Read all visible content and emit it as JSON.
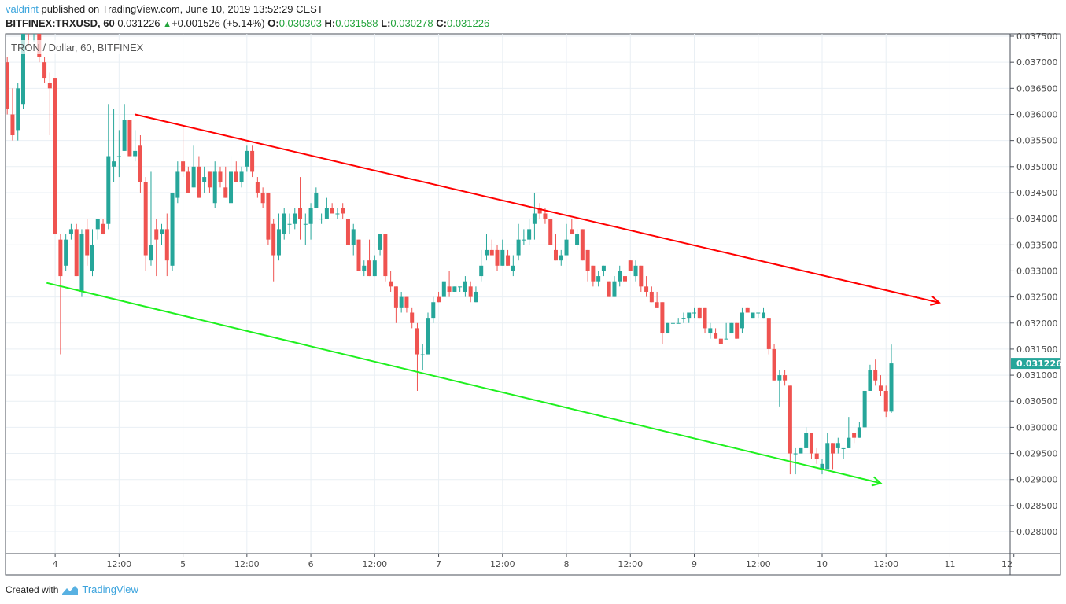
{
  "header": {
    "username": "valdrint",
    "published_text": "published on TradingView.com, June 10, 2019 13:52:29 CEST",
    "symbol": "BITFINEX:TRXUSD, 60",
    "last_price": "0.031226",
    "change": "+0.001526 (+5.14%)",
    "open_label": "O:",
    "open": "0.030303",
    "high_label": "H:",
    "high": "0.031588",
    "low_label": "L:",
    "low": "0.030278",
    "close_label": "C:",
    "close": "0.031226",
    "up_arrow_icon": "triangle-up-icon"
  },
  "footer": {
    "created_with": "Created with",
    "brand": "TradingView",
    "logo_icon": "tradingview-logo-icon"
  },
  "colors": {
    "up": "#26a69a",
    "down": "#ef5350",
    "upper_trendline": "#ff0000",
    "lower_trendline": "#1ef01e",
    "grid": "#e9eff4",
    "price_tag": "#26a69a"
  },
  "chart_data": {
    "type": "candlestick",
    "title": "TRON / Dollar, 60, BITFINEX",
    "interval_minutes": 60,
    "grid": true,
    "ylim": [
      0.0275,
      0.0376
    ],
    "y_ticks": [
      "0.028000",
      "0.028500",
      "0.029000",
      "0.029500",
      "0.030000",
      "0.030500",
      "0.031000",
      "0.031500",
      "0.032000",
      "0.032500",
      "0.033000",
      "0.033500",
      "0.034000",
      "0.034500",
      "0.035000",
      "0.035500",
      "0.036000",
      "0.036500",
      "0.037000",
      "0.037500"
    ],
    "x_ticks": {
      "first_bar": 9,
      "bars_per_tick": 12,
      "labels": [
        "4",
        "12:00",
        "5",
        "12:00",
        "6",
        "12:00",
        "7",
        "12:00",
        "8",
        "12:00",
        "9",
        "12:00",
        "10",
        "12:00",
        "11",
        "12"
      ]
    },
    "current_price": {
      "value": 0.031226,
      "label": "0.031226"
    },
    "trendlines": [
      {
        "name": "upper",
        "color": "#ff0000",
        "start": {
          "bar": 24,
          "price": 0.036
        },
        "end": {
          "bar": 175,
          "price": 0.03239
        }
      },
      {
        "name": "lower",
        "color": "#1ef01e",
        "start": {
          "bar": 7.4,
          "price": 0.03277
        },
        "end": {
          "bar": 164,
          "price": 0.02893
        }
      }
    ],
    "candles_ohlc": [
      [
        0.037,
        0.0371,
        0.036,
        0.0361
      ],
      [
        0.036,
        0.0365,
        0.0355,
        0.0356
      ],
      [
        0.0357,
        0.0366,
        0.0355,
        0.0365
      ],
      [
        0.0362,
        0.0378,
        0.0361,
        0.0378
      ],
      [
        0.0378,
        0.038,
        0.0373,
        0.0376
      ],
      [
        0.0376,
        0.0378,
        0.0374,
        0.0377
      ],
      [
        0.0377,
        0.0378,
        0.037,
        0.0371
      ],
      [
        0.037,
        0.0371,
        0.0366,
        0.0367
      ],
      [
        0.0366,
        0.0368,
        0.0356,
        0.0365
      ],
      [
        0.0367,
        0.0367,
        0.0337,
        0.0337
      ],
      [
        0.0336,
        0.0337,
        0.0314,
        0.0329
      ],
      [
        0.0331,
        0.0337,
        0.033,
        0.0336
      ],
      [
        0.0337,
        0.0339,
        0.0336,
        0.0338
      ],
      [
        0.0338,
        0.0339,
        0.0329,
        0.0329
      ],
      [
        0.0326,
        0.0338,
        0.0325,
        0.0337
      ],
      [
        0.0338,
        0.034,
        0.0331,
        0.0333
      ],
      [
        0.033,
        0.0338,
        0.0329,
        0.0335
      ],
      [
        0.0338,
        0.034,
        0.0336,
        0.034
      ],
      [
        0.0339,
        0.034,
        0.0337,
        0.0337
      ],
      [
        0.0339,
        0.0362,
        0.0338,
        0.0352
      ],
      [
        0.035,
        0.0361,
        0.0347,
        0.0351
      ],
      [
        0.0352,
        0.0357,
        0.0348,
        0.0352
      ],
      [
        0.0353,
        0.0362,
        0.0353,
        0.0359
      ],
      [
        0.0359,
        0.0359,
        0.0352,
        0.0352
      ],
      [
        0.0352,
        0.0357,
        0.0351,
        0.0353
      ],
      [
        0.0354,
        0.0356,
        0.0345,
        0.0347
      ],
      [
        0.0347,
        0.0348,
        0.033,
        0.0333
      ],
      [
        0.0332,
        0.0349,
        0.0331,
        0.0335
      ],
      [
        0.0338,
        0.034,
        0.0329,
        0.0336
      ],
      [
        0.0337,
        0.0339,
        0.0335,
        0.0338
      ],
      [
        0.0338,
        0.0341,
        0.0329,
        0.0332
      ],
      [
        0.0331,
        0.0345,
        0.033,
        0.0345
      ],
      [
        0.0344,
        0.0351,
        0.0343,
        0.0349
      ],
      [
        0.0351,
        0.0358,
        0.0348,
        0.0349
      ],
      [
        0.0349,
        0.035,
        0.0345,
        0.0345
      ],
      [
        0.0346,
        0.0354,
        0.0346,
        0.035
      ],
      [
        0.035,
        0.0352,
        0.0344,
        0.0344
      ],
      [
        0.0347,
        0.035,
        0.0345,
        0.0348
      ],
      [
        0.0349,
        0.0349,
        0.0345,
        0.0346
      ],
      [
        0.0343,
        0.0351,
        0.0342,
        0.0349
      ],
      [
        0.0349,
        0.035,
        0.0346,
        0.0347
      ],
      [
        0.0346,
        0.035,
        0.0344,
        0.0344
      ],
      [
        0.0343,
        0.0352,
        0.0343,
        0.0349
      ],
      [
        0.0349,
        0.0351,
        0.0347,
        0.0347
      ],
      [
        0.0347,
        0.035,
        0.0346,
        0.0349
      ],
      [
        0.035,
        0.0354,
        0.0349,
        0.0353
      ],
      [
        0.0353,
        0.0354,
        0.0348,
        0.0349
      ],
      [
        0.0347,
        0.0348,
        0.0344,
        0.0345
      ],
      [
        0.0345,
        0.0346,
        0.0342,
        0.0343
      ],
      [
        0.0345,
        0.0345,
        0.0335,
        0.0336
      ],
      [
        0.0339,
        0.034,
        0.0328,
        0.0333
      ],
      [
        0.0333,
        0.0341,
        0.0332,
        0.0338
      ],
      [
        0.0337,
        0.0342,
        0.0336,
        0.0341
      ],
      [
        0.0339,
        0.0341,
        0.0337,
        0.0339
      ],
      [
        0.0339,
        0.0342,
        0.0338,
        0.0341
      ],
      [
        0.0342,
        0.0348,
        0.0336,
        0.034
      ],
      [
        0.0339,
        0.0341,
        0.0335,
        0.0339
      ],
      [
        0.0339,
        0.0343,
        0.0336,
        0.0342
      ],
      [
        0.0342,
        0.0346,
        0.0342,
        0.0345
      ],
      [
        0.034,
        0.0341,
        0.0339,
        0.034
      ],
      [
        0.034,
        0.0344,
        0.034,
        0.0342
      ],
      [
        0.0342,
        0.0343,
        0.0341,
        0.0341
      ],
      [
        0.0341,
        0.0342,
        0.034,
        0.0341
      ],
      [
        0.0342,
        0.0343,
        0.034,
        0.0341
      ],
      [
        0.034,
        0.034,
        0.0335,
        0.0335
      ],
      [
        0.0335,
        0.0339,
        0.0333,
        0.0338
      ],
      [
        0.0336,
        0.0336,
        0.033,
        0.033
      ],
      [
        0.033,
        0.0332,
        0.0329,
        0.0331
      ],
      [
        0.0332,
        0.0336,
        0.0329,
        0.0329
      ],
      [
        0.0329,
        0.0333,
        0.0329,
        0.0332
      ],
      [
        0.0334,
        0.0337,
        0.0333,
        0.0337
      ],
      [
        0.0337,
        0.0337,
        0.0328,
        0.0329
      ],
      [
        0.0328,
        0.033,
        0.0326,
        0.0327
      ],
      [
        0.0327,
        0.0327,
        0.032,
        0.0323
      ],
      [
        0.0323,
        0.0326,
        0.0322,
        0.0325
      ],
      [
        0.0325,
        0.0325,
        0.0322,
        0.0323
      ],
      [
        0.0322,
        0.0323,
        0.0319,
        0.032
      ],
      [
        0.0319,
        0.032,
        0.0307,
        0.0314
      ],
      [
        0.0314,
        0.0316,
        0.0311,
        0.0314
      ],
      [
        0.0314,
        0.0322,
        0.0314,
        0.0321
      ],
      [
        0.0321,
        0.0325,
        0.032,
        0.0324
      ],
      [
        0.0325,
        0.0326,
        0.0324,
        0.0324
      ],
      [
        0.0325,
        0.0328,
        0.0325,
        0.0328
      ],
      [
        0.0327,
        0.033,
        0.0325,
        0.0326
      ],
      [
        0.0326,
        0.0327,
        0.0326,
        0.0327
      ],
      [
        0.0327,
        0.0327,
        0.0326,
        0.0327
      ],
      [
        0.0326,
        0.0329,
        0.0325,
        0.0328
      ],
      [
        0.0327,
        0.0328,
        0.0324,
        0.0325
      ],
      [
        0.0324,
        0.0327,
        0.0324,
        0.0326
      ],
      [
        0.0329,
        0.0334,
        0.0328,
        0.0331
      ],
      [
        0.0333,
        0.0337,
        0.0332,
        0.0334
      ],
      [
        0.0334,
        0.0336,
        0.0333,
        0.0333
      ],
      [
        0.0334,
        0.0335,
        0.033,
        0.0331
      ],
      [
        0.0331,
        0.0336,
        0.0331,
        0.0334
      ],
      [
        0.0333,
        0.0334,
        0.0331,
        0.0331
      ],
      [
        0.033,
        0.0333,
        0.0329,
        0.0331
      ],
      [
        0.0333,
        0.0339,
        0.0332,
        0.0336
      ],
      [
        0.0336,
        0.0338,
        0.0335,
        0.0336
      ],
      [
        0.0336,
        0.034,
        0.0335,
        0.0338
      ],
      [
        0.0339,
        0.0345,
        0.0336,
        0.0341
      ],
      [
        0.0342,
        0.0343,
        0.034,
        0.0341
      ],
      [
        0.0341,
        0.0342,
        0.0339,
        0.034
      ],
      [
        0.034,
        0.034,
        0.0335,
        0.0335
      ],
      [
        0.0334,
        0.0337,
        0.0332,
        0.0332
      ],
      [
        0.0332,
        0.0334,
        0.0331,
        0.0333
      ],
      [
        0.0333,
        0.0339,
        0.0333,
        0.0336
      ],
      [
        0.0338,
        0.034,
        0.0337,
        0.0337
      ],
      [
        0.0335,
        0.0338,
        0.0334,
        0.0337
      ],
      [
        0.0338,
        0.0338,
        0.0332,
        0.0332
      ],
      [
        0.0334,
        0.0334,
        0.0328,
        0.033
      ],
      [
        0.0331,
        0.0331,
        0.0327,
        0.0328
      ],
      [
        0.0328,
        0.033,
        0.0327,
        0.0329
      ],
      [
        0.033,
        0.0331,
        0.0329,
        0.0331
      ],
      [
        0.0328,
        0.0328,
        0.0325,
        0.0325
      ],
      [
        0.0325,
        0.0329,
        0.0325,
        0.0328
      ],
      [
        0.0328,
        0.0331,
        0.0327,
        0.033
      ],
      [
        0.0329,
        0.033,
        0.0328,
        0.0328
      ],
      [
        0.0332,
        0.0332,
        0.033,
        0.033
      ],
      [
        0.0329,
        0.0332,
        0.0328,
        0.0331
      ],
      [
        0.0331,
        0.0331,
        0.0326,
        0.0327
      ],
      [
        0.0327,
        0.0329,
        0.0325,
        0.0326
      ],
      [
        0.0326,
        0.0327,
        0.0324,
        0.0324
      ],
      [
        0.0324,
        0.0326,
        0.0323,
        0.0323
      ],
      [
        0.0324,
        0.0324,
        0.0316,
        0.0318
      ],
      [
        0.0318,
        0.032,
        0.0318,
        0.032
      ],
      [
        0.032,
        0.032,
        0.032,
        0.032
      ],
      [
        0.032,
        0.0321,
        0.032,
        0.032
      ],
      [
        0.0321,
        0.0322,
        0.032,
        0.0321
      ],
      [
        0.0321,
        0.0322,
        0.032,
        0.0322
      ],
      [
        0.0322,
        0.0323,
        0.0321,
        0.0322
      ],
      [
        0.0323,
        0.0323,
        0.0321,
        0.0321
      ],
      [
        0.0323,
        0.0323,
        0.0318,
        0.0319
      ],
      [
        0.0318,
        0.032,
        0.0317,
        0.0319
      ],
      [
        0.0318,
        0.0319,
        0.0317,
        0.0317
      ],
      [
        0.0317,
        0.0317,
        0.0316,
        0.0316
      ],
      [
        0.0317,
        0.032,
        0.0317,
        0.0317
      ],
      [
        0.0318,
        0.032,
        0.0318,
        0.032
      ],
      [
        0.032,
        0.032,
        0.0317,
        0.0317
      ],
      [
        0.0319,
        0.0323,
        0.0318,
        0.0322
      ],
      [
        0.0323,
        0.0323,
        0.0322,
        0.0322
      ],
      [
        0.0321,
        0.0322,
        0.0321,
        0.0322
      ],
      [
        0.0322,
        0.0322,
        0.0321,
        0.0322
      ],
      [
        0.0321,
        0.0323,
        0.0321,
        0.0322
      ],
      [
        0.0321,
        0.0321,
        0.0314,
        0.0315
      ],
      [
        0.0315,
        0.0316,
        0.0309,
        0.0309
      ],
      [
        0.0309,
        0.0311,
        0.0304,
        0.031
      ],
      [
        0.031,
        0.0311,
        0.0308,
        0.0309
      ],
      [
        0.0308,
        0.0308,
        0.0291,
        0.0295
      ],
      [
        0.0295,
        0.0296,
        0.0291,
        0.0295
      ],
      [
        0.0295,
        0.0296,
        0.0295,
        0.0296
      ],
      [
        0.0296,
        0.03,
        0.0296,
        0.0299
      ],
      [
        0.0299,
        0.0299,
        0.0294,
        0.0295
      ],
      [
        0.0295,
        0.0296,
        0.0293,
        0.0294
      ],
      [
        0.0292,
        0.0294,
        0.0291,
        0.0293
      ],
      [
        0.0292,
        0.0299,
        0.0292,
        0.0297
      ],
      [
        0.0297,
        0.0297,
        0.0292,
        0.0295
      ],
      [
        0.0296,
        0.0298,
        0.0295,
        0.0297
      ],
      [
        0.0296,
        0.0296,
        0.0294,
        0.0296
      ],
      [
        0.0296,
        0.0302,
        0.0296,
        0.0298
      ],
      [
        0.0299,
        0.0299,
        0.0297,
        0.0298
      ],
      [
        0.0298,
        0.0301,
        0.0298,
        0.03
      ],
      [
        0.03,
        0.0307,
        0.03,
        0.0307
      ],
      [
        0.0307,
        0.0312,
        0.0307,
        0.0311
      ],
      [
        0.0311,
        0.0313,
        0.0308,
        0.0309
      ],
      [
        0.0308,
        0.031,
        0.0306,
        0.0307
      ],
      [
        0.0307,
        0.0308,
        0.0302,
        0.0303
      ],
      [
        0.030303,
        0.031588,
        0.030278,
        0.031226
      ]
    ]
  }
}
